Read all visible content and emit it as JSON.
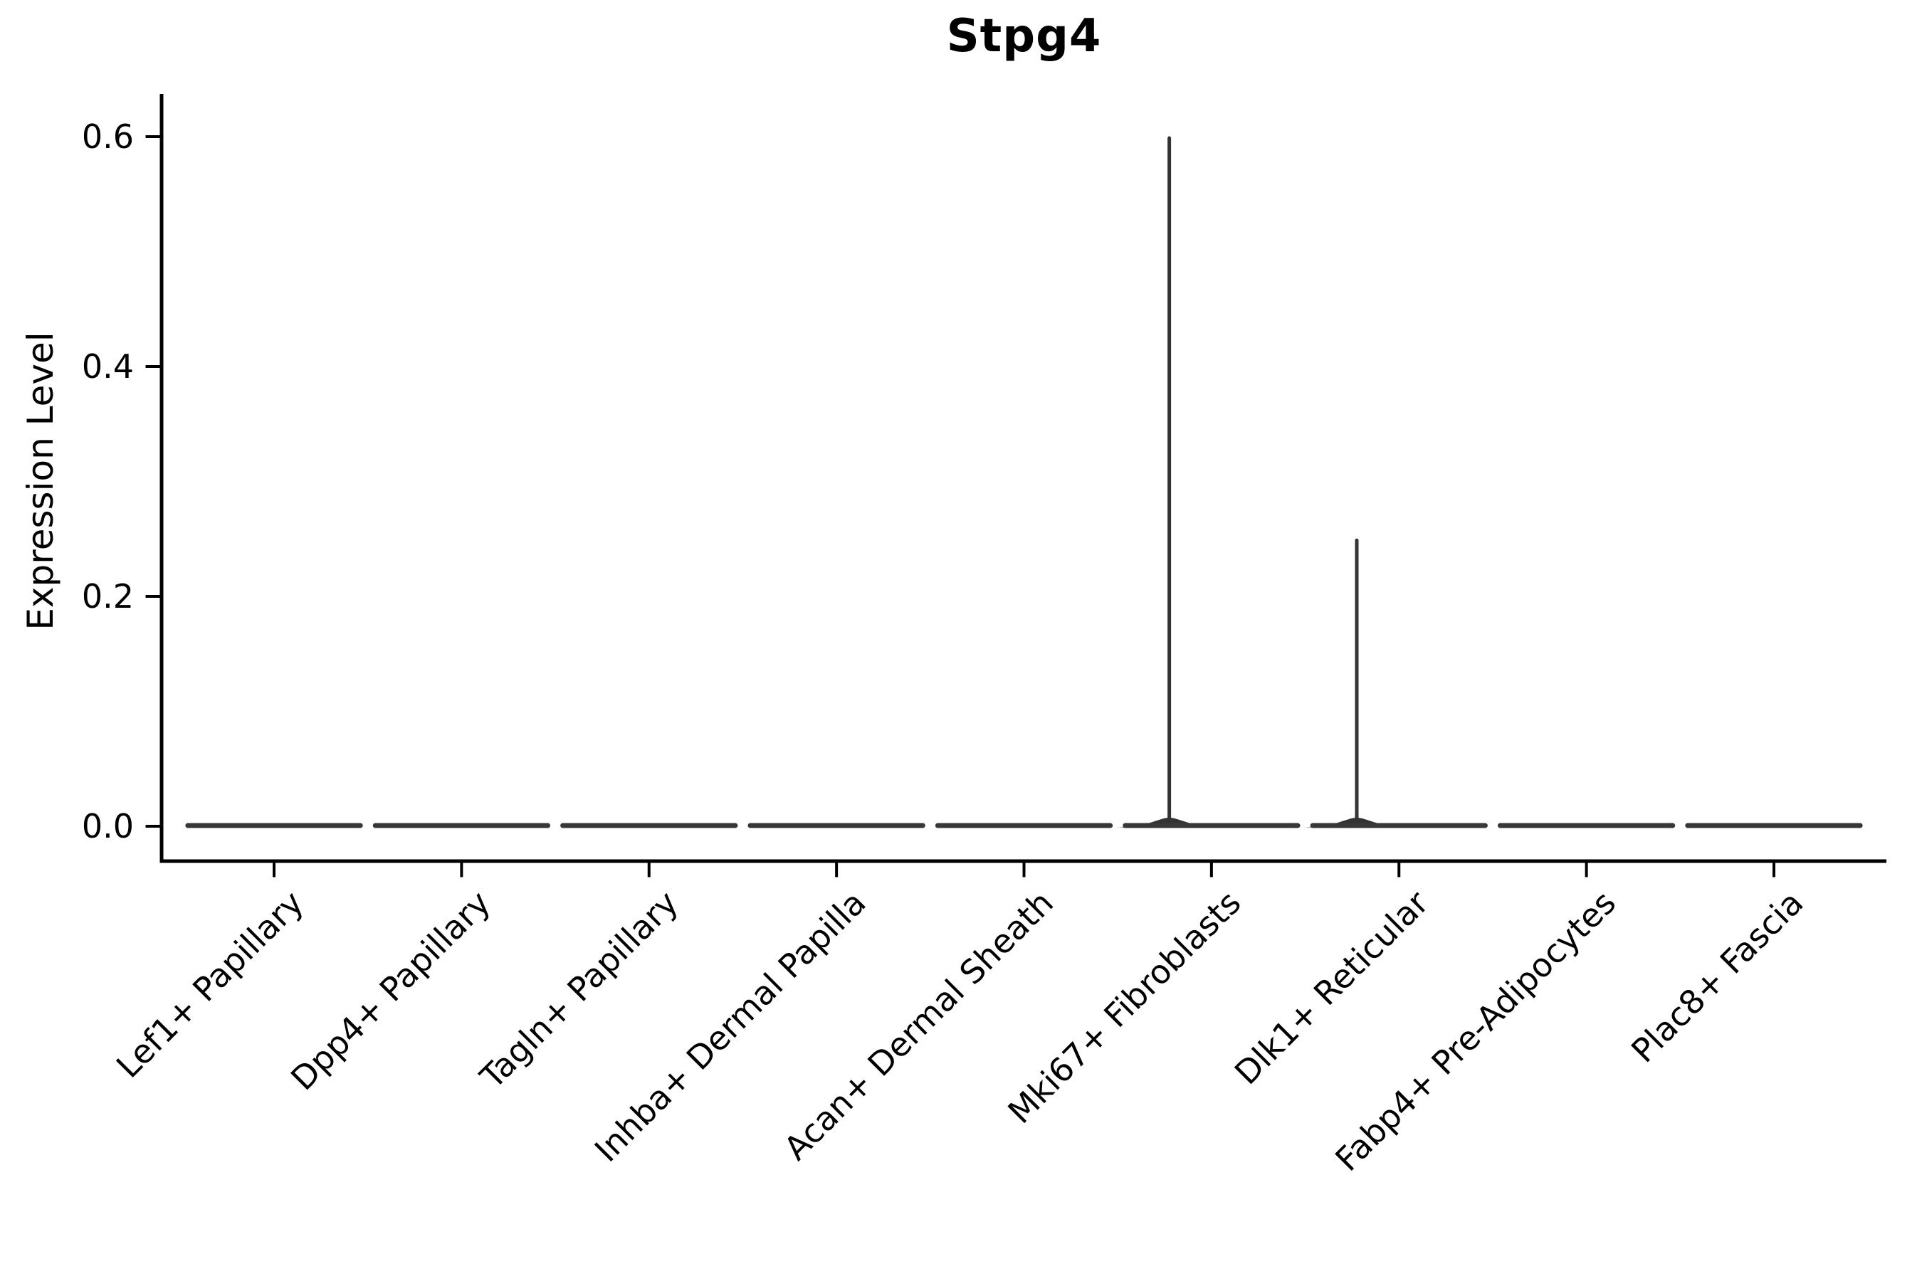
{
  "header": {
    "title": "Stpg4"
  },
  "chart_data": {
    "type": "violin",
    "title": "Stpg4",
    "xlabel": "",
    "ylabel": "Expression Level",
    "categories": [
      "Lef1+ Papillary",
      "Dpp4+ Papillary",
      "Tagln+ Papillary",
      "Inhba+ Dermal Papilla",
      "Acan+ Dermal Sheath",
      "Mki67+ Fibroblasts",
      "Dlk1+ Reticular",
      "Fabp4+ Pre-Adipocytes",
      "Plac8+ Fascia"
    ],
    "series": [
      {
        "name": "Stpg4 expression",
        "violin_max_values": [
          0,
          0,
          0,
          0,
          0,
          0.6,
          0.25,
          0,
          0
        ],
        "bulk_at_zero": [
          true,
          true,
          true,
          true,
          true,
          true,
          true,
          true,
          true
        ]
      }
    ],
    "yticks": [
      0.0,
      0.2,
      0.4,
      0.6
    ],
    "ytick_labels": [
      "0.0",
      "0.2",
      "0.4",
      "0.6"
    ],
    "ylim": [
      -0.03,
      0.635
    ],
    "grid": false,
    "legend_position": "none",
    "colors": {
      "violin_outline": "#383838",
      "spike": "#333333",
      "axis": "#000000",
      "text": "#000000",
      "background": "#ffffff"
    },
    "layout_hints": {
      "x_label_rotation_deg": 45,
      "violin_width_frac": 0.92,
      "spike_offset_frac": -0.225,
      "spines": [
        "left",
        "bottom"
      ]
    }
  }
}
